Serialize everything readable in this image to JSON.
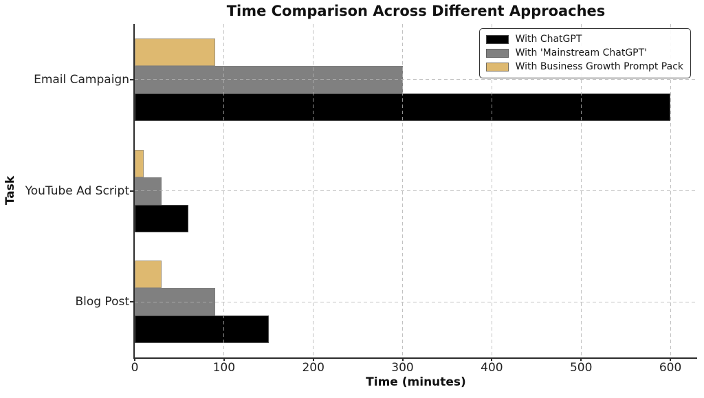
{
  "figure": {
    "background": "#ffffff",
    "spine_color": "#2b2b2b",
    "grid_color": "#b3b3b3",
    "bar_edge_color": "#7d7d7d"
  },
  "chart_data": {
    "type": "bar",
    "orientation": "horizontal",
    "title": "Time Comparison Across Different Approaches",
    "xlabel": "Time (minutes)",
    "ylabel": "Task",
    "categories": [
      "Email Campaign",
      "YouTube Ad Script",
      "Blog Post"
    ],
    "series": [
      {
        "name": "With ChatGPT",
        "color": "#000000",
        "values": [
          600,
          60,
          150
        ]
      },
      {
        "name": "With 'Mainstream ChatGPT'",
        "color": "#808080",
        "values": [
          300,
          30,
          90
        ]
      },
      {
        "name": "With Business Growth Prompt Pack",
        "color": "#DEB970",
        "values": [
          90,
          10,
          30
        ]
      }
    ],
    "series_order_top_to_bottom": [
      "With Business Growth Prompt Pack",
      "With 'Mainstream ChatGPT'",
      "With ChatGPT"
    ],
    "xticks": [
      0,
      100,
      200,
      300,
      400,
      500,
      600
    ],
    "xlim": [
      0,
      630
    ],
    "grid": true,
    "grid_style": "dashed",
    "legend_position": "upper right"
  }
}
